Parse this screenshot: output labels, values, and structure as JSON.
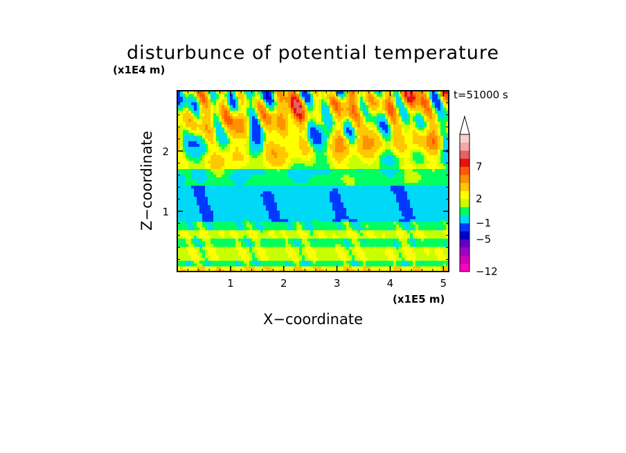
{
  "chart_data": {
    "type": "heatmap",
    "title": "disturbunce of potential temperature",
    "time_label": "t=51000 s",
    "xlabel": "X−coordinate",
    "ylabel": "Z−coordinate",
    "x_unit": "(x1E5 m)",
    "y_unit": "(x1E4 m)",
    "xlim": [
      0,
      5.1
    ],
    "ylim": [
      0,
      3.0
    ],
    "x_ticks": [
      1,
      2,
      3,
      4,
      5
    ],
    "x_ticklabels": [
      "1",
      "2",
      "3",
      "4",
      "5"
    ],
    "y_ticks": [
      1,
      2
    ],
    "y_ticklabels": [
      "1",
      "2"
    ],
    "colorbar": {
      "colors": [
        "#ff00c0",
        "#d000b8",
        "#a000c0",
        "#6000c8",
        "#0000c8",
        "#0038ff",
        "#00d8f8",
        "#00ff60",
        "#c8ff00",
        "#ffff00",
        "#ffc800",
        "#ff9000",
        "#ff5a00",
        "#e81010",
        "#e86060",
        "#f0a8a8",
        "#f8d0d0"
      ],
      "tick_labels": [
        "−12",
        "−5",
        "−1",
        "2",
        "7"
      ],
      "extend": "max"
    },
    "field_bands": [
      {
        "z": [
          0.0,
          0.1
        ],
        "level": "yellow-orange"
      },
      {
        "z": [
          0.1,
          0.2
        ],
        "level": "green"
      },
      {
        "z": [
          0.2,
          0.42
        ],
        "level": "yellow"
      },
      {
        "z": [
          0.42,
          0.55
        ],
        "level": "green"
      },
      {
        "z": [
          0.55,
          0.7
        ],
        "level": "yellow"
      },
      {
        "z": [
          0.7,
          0.85
        ],
        "level": "green"
      },
      {
        "z": [
          0.85,
          1.45
        ],
        "level": "cyan"
      },
      {
        "z": [
          1.45,
          1.7
        ],
        "level": "green"
      },
      {
        "z": [
          1.7,
          3.0
        ],
        "level": "yellow-orange with red and blue wave cells"
      }
    ]
  }
}
